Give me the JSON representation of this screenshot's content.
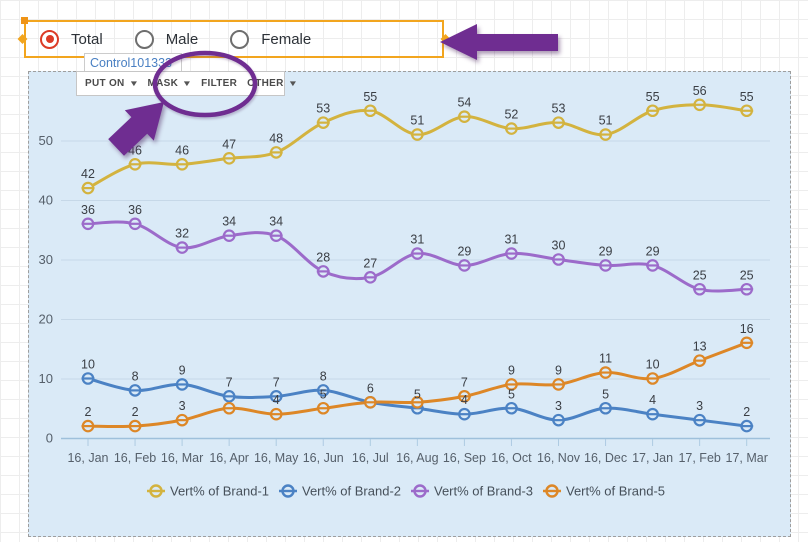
{
  "filter_bar": {
    "options": [
      {
        "label": "Total",
        "selected": true
      },
      {
        "label": "Male",
        "selected": false
      },
      {
        "label": "Female",
        "selected": false
      }
    ]
  },
  "widget": {
    "tab_label": "Control101333",
    "toolbar": {
      "buttons": [
        {
          "label": "PUT ON",
          "caret": true
        },
        {
          "label": "MASK",
          "caret": true
        },
        {
          "label": "FILTER",
          "caret": false
        },
        {
          "label": "OTHER",
          "caret": true
        }
      ]
    }
  },
  "chart_data": {
    "type": "line",
    "categories": [
      "16, Jan",
      "16, Feb",
      "16, Mar",
      "16, Apr",
      "16, May",
      "16, Jun",
      "16, Jul",
      "16, Aug",
      "16, Sep",
      "16, Oct",
      "16, Nov",
      "16, Dec",
      "17, Jan",
      "17, Feb",
      "17, Mar"
    ],
    "series": [
      {
        "name": "Vert% of Brand-1",
        "color": "#d3b33f",
        "values": [
          42,
          46,
          46,
          47,
          48,
          53,
          55,
          51,
          54,
          52,
          53,
          51,
          55,
          56,
          55
        ],
        "labels": [
          "42",
          "46",
          "46",
          "47",
          "48",
          "53",
          "55",
          "51",
          "54",
          "52",
          "53",
          "51",
          "55",
          "56",
          "55"
        ]
      },
      {
        "name": "Vert% of Brand-2",
        "color": "#4b82c4",
        "values": [
          10,
          8,
          9,
          7,
          7,
          8,
          6,
          5,
          4,
          5,
          3,
          5,
          4,
          3,
          2
        ],
        "labels": [
          "10",
          "8",
          "9",
          "7",
          "7",
          "8",
          "6",
          "5",
          "4",
          "5",
          "3",
          "5",
          "4",
          "3",
          "2"
        ]
      },
      {
        "name": "Vert% of Brand-3",
        "color": "#9c6bca",
        "values": [
          36,
          36,
          32,
          34,
          34,
          28,
          27,
          31,
          29,
          31,
          30,
          29,
          29,
          25,
          25
        ],
        "labels": [
          "36",
          "36",
          "32",
          "34",
          "34",
          "28",
          "27",
          "31",
          "29",
          "31",
          "30",
          "29",
          "29",
          "25",
          "25"
        ]
      },
      {
        "name": "Vert% of Brand-5",
        "color": "#dd8727",
        "values": [
          2,
          2,
          3,
          5,
          4,
          5,
          6,
          6,
          7,
          9,
          9,
          11,
          10,
          13,
          16
        ],
        "labels": [
          "2",
          "2",
          "3",
          "",
          "4",
          "5",
          "",
          "",
          "7",
          "9",
          "9",
          "11",
          "10",
          "13",
          "16"
        ]
      }
    ],
    "yticks": [
      0,
      10,
      20,
      30,
      40,
      50
    ],
    "ylim": [
      0,
      59
    ],
    "grid": true,
    "legend_position": "bottom",
    "title": "",
    "xlabel": "",
    "ylabel": ""
  },
  "colors": {
    "selection_frame": "#f2a51e",
    "annotation_purple": "#6f2d91",
    "container_bg": "#daeaf7",
    "gridline": "#c6d8e8",
    "axis_line": "#9ec0db",
    "tick": "#aecbe2",
    "value_label": "#3a3e44",
    "axis_label": "#56606b",
    "legend_text": "#46505a"
  }
}
